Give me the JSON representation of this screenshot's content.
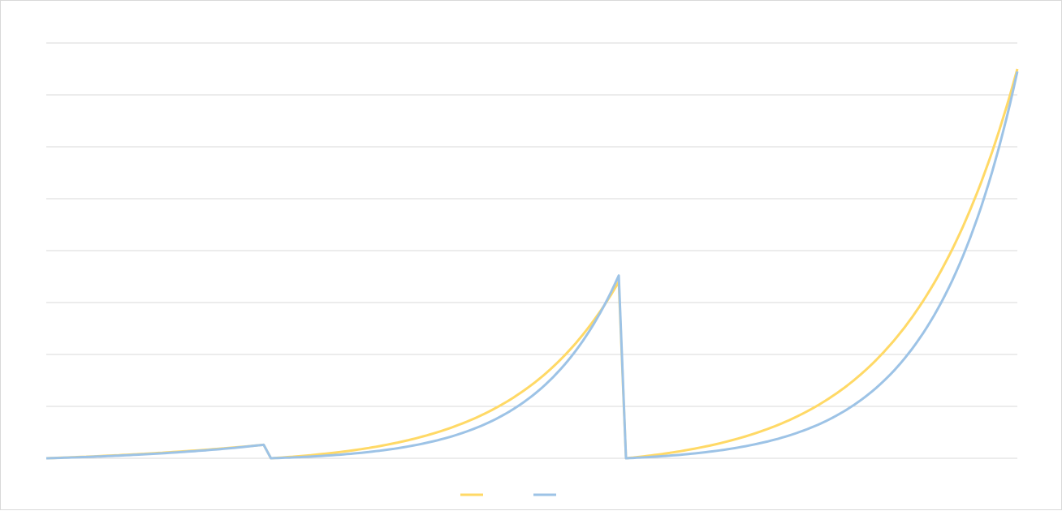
{
  "chart_data": {
    "type": "line",
    "title": "",
    "xlabel": "",
    "ylabel": "",
    "ylim": [
      0,
      8
    ],
    "grid": true,
    "legend_position": "bottom",
    "segments": [
      {
        "x_range": [
          0,
          60
        ],
        "yellow": {
          "end": 0.26,
          "shape": 1.0
        },
        "blue": {
          "end": 0.26,
          "shape": 1.35
        }
      },
      {
        "x_range": [
          62,
          158
        ],
        "yellow": {
          "end": 3.4,
          "shape": 3.3
        },
        "blue": {
          "end": 3.52,
          "shape": 4.2
        }
      },
      {
        "x_range": [
          160,
          268
        ],
        "yellow": {
          "end": 7.5,
          "shape": 3.6
        },
        "blue": {
          "end": 7.45,
          "shape": 4.6
        }
      }
    ],
    "series": [
      {
        "color": "#ffd966"
      },
      {
        "color": "#9dc3e6"
      }
    ],
    "xlim": [
      0,
      268
    ]
  }
}
